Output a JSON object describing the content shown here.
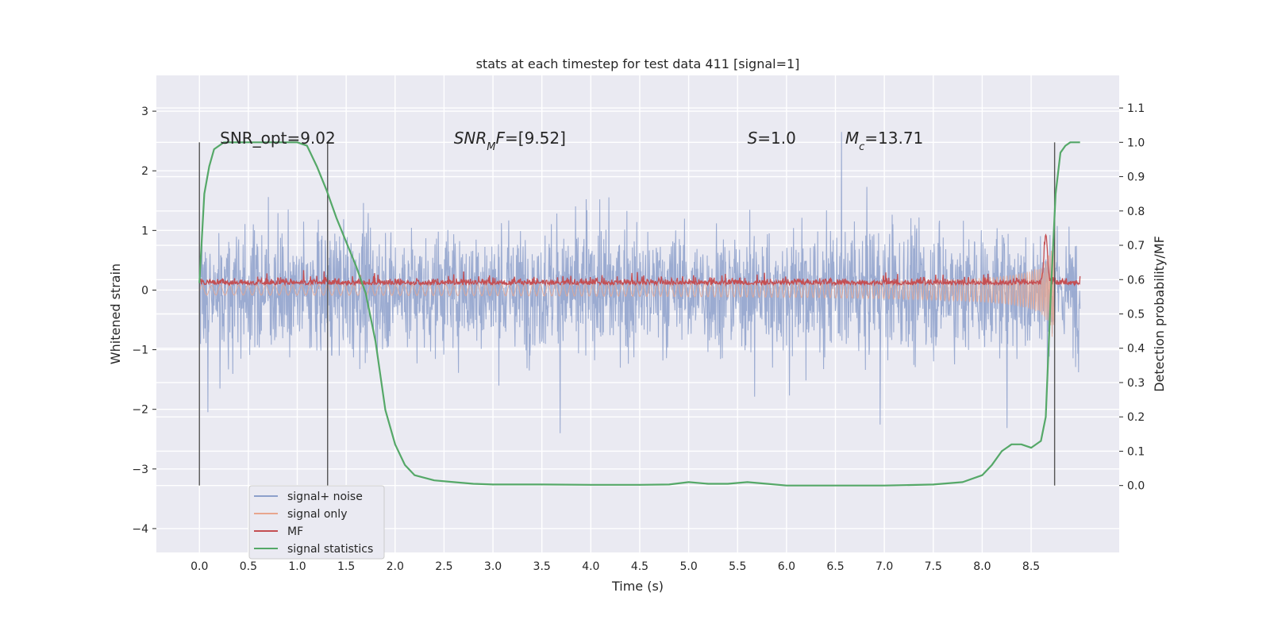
{
  "chart_data": {
    "type": "line",
    "title": "stats at each timestep for test data 411 [signal=1]",
    "xlabel": "Time (s)",
    "ylabel": "Whitened strain",
    "y2label": "Detection probability/MF",
    "xlim": [
      -0.44,
      9.4
    ],
    "ylim": [
      -4.4,
      3.6
    ],
    "y2lim": [
      -0.195,
      1.195
    ],
    "x_ticks": [
      0.0,
      0.5,
      1.0,
      1.5,
      2.0,
      2.5,
      3.0,
      3.5,
      4.0,
      4.5,
      5.0,
      5.5,
      6.0,
      6.5,
      7.0,
      7.5,
      8.0,
      8.5
    ],
    "x_tick_labels": [
      "0.0",
      "0.5",
      "1.0",
      "1.5",
      "2.0",
      "2.5",
      "3.0",
      "3.5",
      "4.0",
      "4.5",
      "5.0",
      "5.5",
      "6.0",
      "6.5",
      "7.0",
      "7.5",
      "8.0",
      "8.5"
    ],
    "y_ticks": [
      3,
      2,
      1,
      0,
      -1,
      -2,
      -3,
      -4
    ],
    "y_tick_labels": [
      "3",
      "2",
      "1",
      "0",
      "−1",
      "−2",
      "−3",
      "−4"
    ],
    "y2_ticks": [
      1.1,
      1.0,
      0.9,
      0.8,
      0.7,
      0.6,
      0.5,
      0.4,
      0.3,
      0.2,
      0.1,
      0.0
    ],
    "y2_tick_labels": [
      "1.1",
      "1.0",
      "0.9",
      "0.8",
      "0.7",
      "0.6",
      "0.5",
      "0.4",
      "0.3",
      "0.2",
      "0.1",
      "0.0"
    ],
    "grid": true,
    "legend_position": "lower-left",
    "annotations": {
      "snr_opt": "SNR_opt=9.02",
      "snr_mf": "=[9.52]",
      "s": "=1.0",
      "mc": "=13.71"
    },
    "vertical_lines_x": [
      0.0,
      1.31,
      8.74
    ],
    "series": [
      {
        "name": "signal+ noise",
        "color": "#8da0cb",
        "note": "dense noise trace from 0 to 9.0 s, amplitude approx ±1.3 typical, peaks near ±3",
        "amplitude_typical": 1.3,
        "amplitude_peak": 3.2,
        "x_range": [
          0.0,
          9.0
        ]
      },
      {
        "name": "signal only",
        "color": "#e8a68e",
        "note": "chirp growing in amplitude toward ~8.7 s",
        "x_range": [
          0.0,
          8.74
        ],
        "peak_amplitude": 1.5
      },
      {
        "name": "MF",
        "color": "#c44e52",
        "axis": "right",
        "note": "matched filter output near 0.59-0.62 on right axis, spike ~0.73 near 8.65 s",
        "x_range": [
          0.0,
          9.0
        ]
      },
      {
        "name": "signal statistics",
        "color": "#55a868",
        "axis": "right",
        "x": [
          0.0,
          0.05,
          0.1,
          0.15,
          0.25,
          0.4,
          1.0,
          1.1,
          1.2,
          1.3,
          1.4,
          1.5,
          1.6,
          1.7,
          1.8,
          1.9,
          2.0,
          2.1,
          2.2,
          2.4,
          2.6,
          2.8,
          3.0,
          3.5,
          4.0,
          4.5,
          4.8,
          5.0,
          5.2,
          5.4,
          5.6,
          5.8,
          6.0,
          6.5,
          7.0,
          7.5,
          7.8,
          8.0,
          8.1,
          8.2,
          8.3,
          8.4,
          8.5,
          8.6,
          8.65,
          8.7,
          8.75,
          8.8,
          8.85,
          8.9,
          8.95,
          9.0
        ],
        "values": [
          0.59,
          0.85,
          0.93,
          0.98,
          1.0,
          1.0,
          1.0,
          0.99,
          0.93,
          0.86,
          0.78,
          0.71,
          0.64,
          0.56,
          0.42,
          0.22,
          0.12,
          0.06,
          0.03,
          0.015,
          0.01,
          0.005,
          0.003,
          0.003,
          0.002,
          0.002,
          0.003,
          0.01,
          0.005,
          0.005,
          0.01,
          0.005,
          0.0,
          0.0,
          0.0,
          0.003,
          0.01,
          0.03,
          0.06,
          0.1,
          0.12,
          0.12,
          0.11,
          0.13,
          0.2,
          0.55,
          0.85,
          0.97,
          0.99,
          1.0,
          1.0,
          1.0
        ]
      }
    ]
  }
}
